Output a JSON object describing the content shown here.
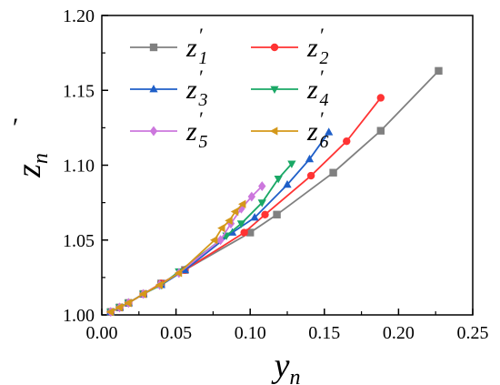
{
  "chart_data": {
    "type": "line",
    "xlabel": "y",
    "xlabel_sub": "n",
    "ylabel": "z",
    "ylabel_sub": "n",
    "ylabel_prime": "′",
    "xlim": [
      0.0,
      0.25
    ],
    "ylim": [
      1.0,
      1.2
    ],
    "xticks": [
      0.0,
      0.05,
      0.1,
      0.15,
      0.2,
      0.25
    ],
    "yticks": [
      1.0,
      1.05,
      1.1,
      1.15,
      1.2
    ],
    "xtick_labels": [
      "0.00",
      "0.05",
      "0.10",
      "0.15",
      "0.20",
      "0.25"
    ],
    "ytick_labels": [
      "1.00",
      "1.05",
      "1.10",
      "1.15",
      "1.20"
    ],
    "grid": false,
    "legend_position": "top-left",
    "series": [
      {
        "name": "z1′",
        "legend_base": "z",
        "legend_prime": "′",
        "legend_sub": "1",
        "color": "#808080",
        "marker": "square",
        "points": [
          [
            0.006,
            1.002
          ],
          [
            0.012,
            1.005
          ],
          [
            0.018,
            1.008
          ],
          [
            0.028,
            1.014
          ],
          [
            0.04,
            1.021
          ],
          [
            0.056,
            1.03
          ],
          [
            0.1,
            1.055
          ],
          [
            0.118,
            1.067
          ],
          [
            0.156,
            1.095
          ],
          [
            0.188,
            1.123
          ],
          [
            0.227,
            1.163
          ]
        ]
      },
      {
        "name": "z2′",
        "legend_base": "z",
        "legend_prime": "′",
        "legend_sub": "2",
        "color": "#ff3333",
        "marker": "circle",
        "points": [
          [
            0.006,
            1.002
          ],
          [
            0.012,
            1.005
          ],
          [
            0.018,
            1.008
          ],
          [
            0.028,
            1.014
          ],
          [
            0.04,
            1.021
          ],
          [
            0.056,
            1.03
          ],
          [
            0.096,
            1.055
          ],
          [
            0.11,
            1.067
          ],
          [
            0.141,
            1.093
          ],
          [
            0.165,
            1.116
          ],
          [
            0.188,
            1.145
          ]
        ]
      },
      {
        "name": "z3′",
        "legend_base": "z",
        "legend_prime": "′",
        "legend_sub": "3",
        "color": "#1f5fc8",
        "marker": "triangle-up",
        "points": [
          [
            0.006,
            1.002
          ],
          [
            0.012,
            1.005
          ],
          [
            0.018,
            1.008
          ],
          [
            0.028,
            1.014
          ],
          [
            0.04,
            1.02
          ],
          [
            0.056,
            1.03
          ],
          [
            0.088,
            1.055
          ],
          [
            0.103,
            1.065
          ],
          [
            0.125,
            1.087
          ],
          [
            0.14,
            1.104
          ],
          [
            0.153,
            1.122
          ]
        ]
      },
      {
        "name": "z4′",
        "legend_base": "z",
        "legend_prime": "′",
        "legend_sub": "4",
        "color": "#1aa866",
        "marker": "triangle-down",
        "points": [
          [
            0.006,
            1.002
          ],
          [
            0.012,
            1.005
          ],
          [
            0.018,
            1.008
          ],
          [
            0.028,
            1.014
          ],
          [
            0.04,
            1.02
          ],
          [
            0.052,
            1.029
          ],
          [
            0.084,
            1.053
          ],
          [
            0.094,
            1.061
          ],
          [
            0.108,
            1.075
          ],
          [
            0.119,
            1.091
          ],
          [
            0.128,
            1.101
          ]
        ]
      },
      {
        "name": "z5′",
        "legend_base": "z",
        "legend_prime": "′",
        "legend_sub": "5",
        "color": "#cc77dd",
        "marker": "diamond",
        "points": [
          [
            0.006,
            1.002
          ],
          [
            0.012,
            1.005
          ],
          [
            0.018,
            1.008
          ],
          [
            0.028,
            1.014
          ],
          [
            0.039,
            1.02
          ],
          [
            0.052,
            1.028
          ],
          [
            0.08,
            1.05
          ],
          [
            0.087,
            1.061
          ],
          [
            0.094,
            1.071
          ],
          [
            0.101,
            1.079
          ],
          [
            0.108,
            1.086
          ]
        ]
      },
      {
        "name": "z6′",
        "legend_base": "z",
        "legend_prime": "′",
        "legend_sub": "6",
        "color": "#d4981a",
        "marker": "triangle-left",
        "points": [
          [
            0.006,
            1.002
          ],
          [
            0.012,
            1.005
          ],
          [
            0.018,
            1.008
          ],
          [
            0.028,
            1.014
          ],
          [
            0.039,
            1.02
          ],
          [
            0.052,
            1.028
          ],
          [
            0.076,
            1.05
          ],
          [
            0.081,
            1.058
          ],
          [
            0.086,
            1.063
          ],
          [
            0.09,
            1.069
          ],
          [
            0.095,
            1.074
          ]
        ]
      }
    ]
  }
}
